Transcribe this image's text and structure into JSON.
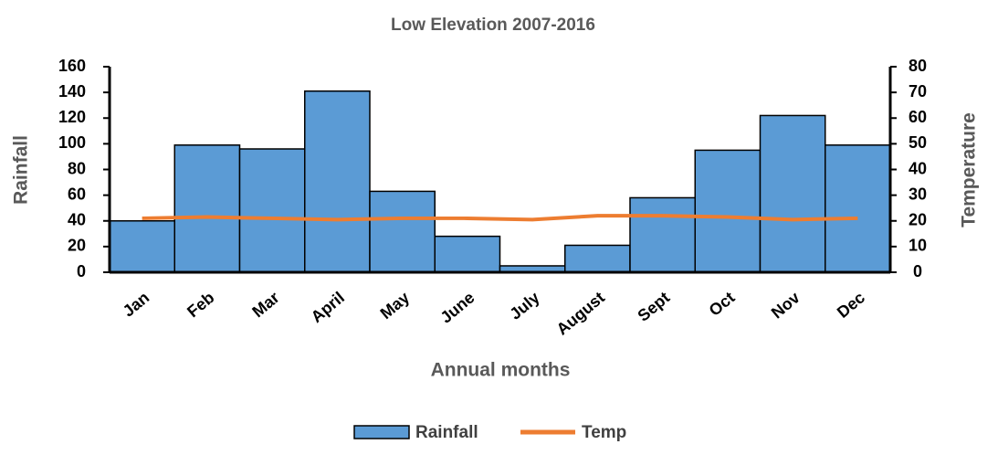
{
  "chart_data": {
    "type": "bar",
    "title": "Low Elevation 2007-2016",
    "x_label": "Annual months",
    "y_label": "Rainfall",
    "y2_label": "Temperature",
    "categories": [
      "Jan",
      "Feb",
      "Mar",
      "April",
      "May",
      "June",
      "July",
      "August",
      "Sept",
      "Oct",
      "Nov",
      "Dec"
    ],
    "series": [
      {
        "name": "Rainfall",
        "type": "bar",
        "color": "#5b9bd5",
        "values": [
          40,
          99,
          96,
          141,
          63,
          28,
          5,
          21,
          58,
          95,
          122,
          99
        ]
      },
      {
        "name": "Temp",
        "type": "line",
        "axis": "y2",
        "color": "#ed7d31",
        "values": [
          21,
          21.5,
          21,
          20.5,
          21,
          21,
          20.5,
          22,
          22,
          21.5,
          20.5,
          21
        ]
      }
    ],
    "ylim": [
      0,
      160
    ],
    "yticks": [
      0,
      20,
      40,
      60,
      80,
      100,
      120,
      140,
      160
    ],
    "y2lim": [
      0,
      80
    ],
    "y2ticks": [
      0,
      10,
      20,
      30,
      40,
      50,
      60,
      70,
      80
    ],
    "legend": "bottom"
  }
}
